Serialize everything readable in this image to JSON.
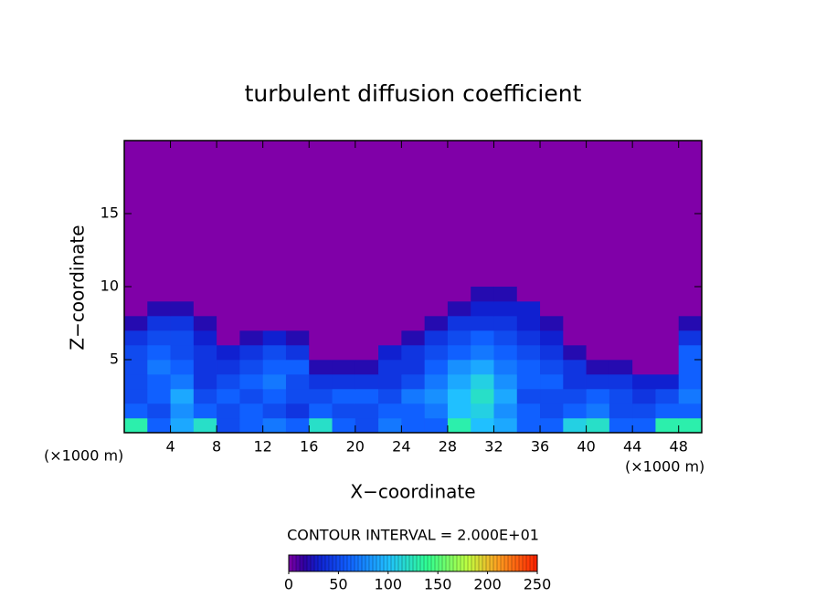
{
  "chart_data": {
    "type": "contour",
    "title": "turbulent diffusion coefficient",
    "x_label": "X−coordinate",
    "y_label": "Z−coordinate",
    "x_units": [
      "(×1000 m)",
      "(×1000 m)"
    ],
    "xlim": [
      0,
      50
    ],
    "ylim": [
      0,
      20
    ],
    "xticks": [
      4,
      8,
      12,
      16,
      20,
      24,
      28,
      32,
      36,
      40,
      44,
      48
    ],
    "yticks": [
      5,
      10,
      15
    ],
    "x": [
      1,
      3,
      5,
      7,
      9,
      11,
      13,
      15,
      17,
      19,
      21,
      23,
      25,
      27,
      29,
      31,
      33,
      35,
      37,
      39,
      41,
      43,
      45,
      47,
      49
    ],
    "y": [
      0.5,
      1.5,
      2.5,
      3.5,
      4.5,
      5.5,
      6.5,
      7.5,
      8.5,
      9.5
    ],
    "z": [
      [
        130,
        60,
        90,
        120,
        50,
        60,
        70,
        60,
        120,
        60,
        50,
        70,
        60,
        60,
        130,
        100,
        90,
        60,
        60,
        110,
        120,
        60,
        60,
        130,
        130
      ],
      [
        60,
        50,
        80,
        60,
        50,
        60,
        50,
        40,
        60,
        50,
        50,
        60,
        60,
        70,
        100,
        110,
        80,
        60,
        50,
        60,
        70,
        50,
        50,
        60,
        60
      ],
      [
        50,
        60,
        90,
        50,
        60,
        50,
        60,
        50,
        50,
        60,
        60,
        50,
        70,
        80,
        100,
        120,
        90,
        50,
        50,
        50,
        60,
        50,
        40,
        50,
        70
      ],
      [
        50,
        60,
        70,
        40,
        50,
        60,
        70,
        50,
        40,
        40,
        40,
        40,
        50,
        70,
        90,
        110,
        80,
        60,
        60,
        40,
        40,
        40,
        30,
        30,
        60
      ],
      [
        50,
        70,
        60,
        40,
        40,
        50,
        60,
        60,
        20,
        20,
        20,
        40,
        40,
        60,
        80,
        90,
        70,
        60,
        50,
        40,
        20,
        20,
        0,
        0,
        60
      ],
      [
        50,
        60,
        50,
        40,
        30,
        40,
        50,
        40,
        0,
        0,
        0,
        30,
        40,
        50,
        60,
        70,
        60,
        50,
        40,
        20,
        0,
        0,
        0,
        0,
        60
      ],
      [
        40,
        50,
        50,
        30,
        0,
        20,
        30,
        20,
        0,
        0,
        0,
        0,
        20,
        40,
        50,
        60,
        50,
        40,
        30,
        0,
        0,
        0,
        0,
        0,
        40
      ],
      [
        20,
        40,
        40,
        20,
        0,
        0,
        0,
        0,
        0,
        0,
        0,
        0,
        0,
        20,
        40,
        40,
        40,
        30,
        20,
        0,
        0,
        0,
        0,
        0,
        20
      ],
      [
        0,
        20,
        20,
        0,
        0,
        0,
        0,
        0,
        0,
        0,
        0,
        0,
        0,
        0,
        20,
        30,
        30,
        30,
        0,
        0,
        0,
        0,
        0,
        0,
        0
      ],
      [
        0,
        0,
        0,
        0,
        0,
        0,
        0,
        0,
        0,
        0,
        0,
        0,
        0,
        0,
        0,
        20,
        20,
        0,
        0,
        0,
        0,
        0,
        0,
        0,
        0
      ]
    ],
    "contour_interval_label": "CONTOUR INTERVAL = 2.000E+01",
    "clim": [
      0,
      250
    ],
    "cticks": [
      0,
      50,
      100,
      150,
      200,
      250
    ]
  }
}
